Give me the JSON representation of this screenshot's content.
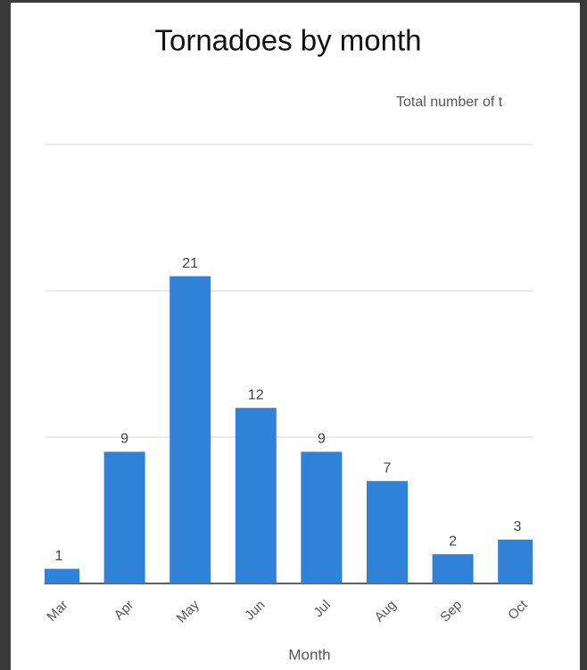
{
  "chart_data": {
    "type": "bar",
    "title": "Tornadoes by month",
    "x_label": "Month",
    "categories": [
      "Mar",
      "Apr",
      "May",
      "Jun",
      "Jul",
      "Aug",
      "Sep",
      "Oct"
    ],
    "series": [
      {
        "name": "Total number of t",
        "color": "#2f82d8",
        "values": [
          1,
          9,
          21,
          12,
          9,
          7,
          2,
          3
        ]
      }
    ],
    "ylim": [
      0,
      30
    ],
    "yticks": [
      0,
      10,
      20,
      30
    ],
    "grid": true,
    "legend": "top-right"
  }
}
